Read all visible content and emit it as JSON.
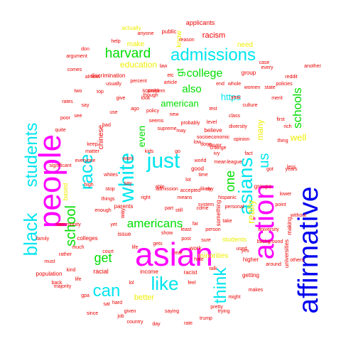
{
  "colors": {
    "blue": "#0000ee",
    "magenta": "#ff00ff",
    "cyan": "#00e5ee",
    "green": "#00dd00",
    "yellow": "#eeee00",
    "red": "#ee0000",
    "dark_red": "#aa0000",
    "background": "#ffffff"
  },
  "words": [
    {
      "text": "asian",
      "color": "magenta"
    },
    {
      "text": "people",
      "color": "magenta"
    },
    {
      "text": "action",
      "color": "magenta"
    },
    {
      "text": "affirmative",
      "color": "blue"
    },
    {
      "text": "white",
      "color": "cyan"
    },
    {
      "text": "admissions",
      "color": "cyan"
    },
    {
      "text": "black",
      "color": "cyan"
    },
    {
      "text": "students",
      "color": "cyan"
    },
    {
      "text": "asians",
      "color": "cyan"
    },
    {
      "text": "just",
      "color": "cyan"
    },
    {
      "text": "like",
      "color": "cyan"
    },
    {
      "text": "race",
      "color": "cyan"
    },
    {
      "text": "can",
      "color": "cyan"
    },
    {
      "text": "think",
      "color": "cyan"
    },
    {
      "text": "us",
      "color": "cyan"
    },
    {
      "text": "harvard",
      "color": "green"
    },
    {
      "text": "school",
      "color": "green"
    },
    {
      "text": "get",
      "color": "green"
    },
    {
      "text": "americans",
      "color": "green"
    },
    {
      "text": "college",
      "color": "green"
    },
    {
      "text": "schools",
      "color": "green"
    },
    {
      "text": "one",
      "color": "green"
    },
    {
      "text": "also",
      "color": "green"
    },
    {
      "text": "american",
      "color": "green"
    },
    {
      "text": "even",
      "color": "green"
    },
    {
      "text": "education",
      "color": "yellow"
    },
    {
      "text": "racism",
      "color": "red"
    },
    {
      "text": "applicants",
      "color": "red"
    },
    {
      "text": "chinese",
      "color": "red"
    },
    {
      "text": "many",
      "color": "yellow"
    },
    {
      "text": "know",
      "color": "yellow"
    },
    {
      "text": "make",
      "color": "yellow"
    },
    {
      "text": "need",
      "color": "yellow"
    },
    {
      "text": "better",
      "color": "yellow"
    },
    {
      "text": "well",
      "color": "yellow"
    },
    {
      "text": "really",
      "color": "yellow"
    },
    {
      "text": "https",
      "color": "cyan"
    },
    {
      "text": "minorities",
      "color": "yellow"
    },
    {
      "text": "discrimination",
      "color": "red"
    },
    {
      "text": "actually",
      "color": "yellow"
    },
    {
      "text": "public",
      "color": "red"
    },
    {
      "text": "scores",
      "color": "red"
    },
    {
      "text": "problem",
      "color": "red"
    },
    {
      "text": "believe",
      "color": "red"
    },
    {
      "text": "based",
      "color": "yellow"
    },
    {
      "text": "income",
      "color": "red"
    },
    {
      "text": "issue",
      "color": "red"
    },
    {
      "text": "parents",
      "color": "red"
    },
    {
      "text": "colleges",
      "color": "red"
    },
    {
      "text": "population",
      "color": "red"
    },
    {
      "text": "racist",
      "color": "red"
    },
    {
      "text": "higher",
      "color": "red"
    },
    {
      "text": "getting",
      "color": "red"
    },
    {
      "text": "group",
      "color": "red"
    },
    {
      "text": "groups",
      "color": "red"
    },
    {
      "text": "students",
      "color": "yellow"
    },
    {
      "text": "universities",
      "color": "red"
    },
    {
      "text": "making",
      "color": "red"
    },
    {
      "text": "work",
      "color": "red"
    },
    {
      "text": "gt",
      "color": "green"
    },
    {
      "text": "way",
      "color": "red"
    },
    {
      "text": "something",
      "color": "red"
    },
    {
      "text": "racial",
      "color": "red"
    },
    {
      "text": "never",
      "color": "red"
    },
    {
      "text": "good",
      "color": "red"
    },
    {
      "text": "level",
      "color": "red"
    },
    {
      "text": "help",
      "color": "red"
    },
    {
      "text": "argument",
      "color": "red"
    },
    {
      "text": "anyone",
      "color": "red"
    },
    {
      "text": "reason",
      "color": "red"
    },
    {
      "text": "others",
      "color": "red"
    },
    {
      "text": "majority",
      "color": "red"
    },
    {
      "text": "family",
      "color": "red"
    },
    {
      "text": "hard",
      "color": "red"
    },
    {
      "text": "things",
      "color": "red"
    },
    {
      "text": "opinion",
      "color": "red"
    },
    {
      "text": "change",
      "color": "red"
    },
    {
      "text": "around",
      "color": "red"
    },
    {
      "text": "given",
      "color": "red"
    },
    {
      "text": "court",
      "color": "red"
    },
    {
      "text": "point",
      "color": "red"
    },
    {
      "text": "saying",
      "color": "red"
    },
    {
      "text": "less",
      "color": "red"
    },
    {
      "text": "case",
      "color": "red"
    },
    {
      "text": "top",
      "color": "red"
    },
    {
      "text": "every",
      "color": "red"
    },
    {
      "text": "without",
      "color": "red"
    },
    {
      "text": "pretty",
      "color": "red"
    },
    {
      "text": "though",
      "color": "red"
    },
    {
      "text": "high",
      "color": "red"
    },
    {
      "text": "thing",
      "color": "red"
    },
    {
      "text": "admission",
      "color": "red"
    },
    {
      "text": "system",
      "color": "red"
    },
    {
      "text": "still",
      "color": "red"
    },
    {
      "text": "since",
      "color": "red"
    },
    {
      "text": "year",
      "color": "red"
    },
    {
      "text": "years",
      "color": "red"
    },
    {
      "text": "culture",
      "color": "red"
    },
    {
      "text": "percent",
      "color": "red"
    },
    {
      "text": "everyone",
      "color": "red"
    },
    {
      "text": "personal",
      "color": "red"
    },
    {
      "text": "another",
      "color": "red"
    },
    {
      "text": "look",
      "color": "red"
    },
    {
      "text": "enough",
      "color": "red"
    },
    {
      "text": "rather",
      "color": "red"
    },
    {
      "text": "world",
      "color": "red"
    },
    {
      "text": "policy",
      "color": "red"
    },
    {
      "text": "poor",
      "color": "red"
    },
    {
      "text": "kids",
      "color": "red"
    },
    {
      "text": "person",
      "color": "red"
    },
    {
      "text": "got",
      "color": "red"
    },
    {
      "text": "probably",
      "color": "red"
    },
    {
      "text": "take",
      "color": "red"
    },
    {
      "text": "go",
      "color": "red"
    },
    {
      "text": "see",
      "color": "red"
    },
    {
      "text": "may",
      "color": "red"
    },
    {
      "text": "say",
      "color": "red"
    },
    {
      "text": "new",
      "color": "red"
    },
    {
      "text": "lot",
      "color": "red"
    },
    {
      "text": "show",
      "color": "red"
    },
    {
      "text": "say",
      "color": "red"
    },
    {
      "text": "want",
      "color": "red"
    },
    {
      "text": "time",
      "color": "red"
    },
    {
      "text": "right",
      "color": "red"
    },
    {
      "text": "part",
      "color": "red"
    },
    {
      "text": "real",
      "color": "red"
    },
    {
      "text": "life",
      "color": "red"
    },
    {
      "text": "bad",
      "color": "red"
    },
    {
      "text": "post",
      "color": "red"
    },
    {
      "text": "done",
      "color": "red"
    },
    {
      "text": "fact",
      "color": "red"
    },
    {
      "text": "gets",
      "color": "red"
    },
    {
      "text": "don",
      "color": "red"
    },
    {
      "text": "say",
      "color": "red"
    },
    {
      "text": "two",
      "color": "red"
    },
    {
      "text": "use",
      "color": "red"
    },
    {
      "text": "test",
      "color": "red"
    },
    {
      "text": "class",
      "color": "red"
    },
    {
      "text": "mean",
      "color": "red"
    },
    {
      "text": "means",
      "color": "red"
    },
    {
      "text": "able",
      "color": "red"
    },
    {
      "text": "seems",
      "color": "red"
    },
    {
      "text": "article",
      "color": "red"
    },
    {
      "text": "first",
      "color": "red"
    },
    {
      "text": "rich",
      "color": "red"
    },
    {
      "text": "socioeconomic",
      "color": "red"
    },
    {
      "text": "diversity",
      "color": "red"
    },
    {
      "text": "supreme",
      "color": "red"
    },
    {
      "text": "accepted",
      "color": "red"
    },
    {
      "text": "ivy",
      "color": "red"
    },
    {
      "text": "league",
      "color": "red"
    },
    {
      "text": "far",
      "color": "red"
    },
    {
      "text": "lower",
      "color": "red"
    },
    {
      "text": "yet",
      "color": "red"
    },
    {
      "text": "sure",
      "color": "red"
    },
    {
      "text": "least",
      "color": "red"
    },
    {
      "text": "hispanic",
      "color": "red"
    },
    {
      "text": "university",
      "color": "red"
    },
    {
      "text": "background",
      "color": "red"
    },
    {
      "text": "keep",
      "color": "red"
    },
    {
      "text": "matter",
      "color": "red"
    },
    {
      "text": "stop",
      "color": "red"
    },
    {
      "text": "community",
      "color": "red"
    },
    {
      "text": "non",
      "color": "red"
    },
    {
      "text": "ago",
      "color": "red"
    },
    {
      "text": "give",
      "color": "red"
    },
    {
      "text": "low",
      "color": "red"
    },
    {
      "text": "whites",
      "color": "red"
    },
    {
      "text": "likely",
      "color": "red"
    },
    {
      "text": "used",
      "color": "red"
    },
    {
      "text": "hate",
      "color": "red"
    },
    {
      "text": "talk",
      "color": "red"
    },
    {
      "text": "feel",
      "color": "red"
    },
    {
      "text": "lol",
      "color": "red"
    },
    {
      "text": "kind",
      "color": "red"
    },
    {
      "text": "life",
      "color": "red"
    },
    {
      "text": "come",
      "color": "red"
    },
    {
      "text": "yes",
      "color": "red"
    },
    {
      "text": "makes",
      "color": "red"
    },
    {
      "text": "might",
      "color": "red"
    },
    {
      "text": "trying",
      "color": "red"
    },
    {
      "text": "trump",
      "color": "red"
    },
    {
      "text": "rate",
      "color": "red"
    },
    {
      "text": "day",
      "color": "red"
    },
    {
      "text": "country",
      "color": "red"
    },
    {
      "text": "job",
      "color": "red"
    },
    {
      "text": "sat",
      "color": "red"
    },
    {
      "text": "gpa",
      "color": "red"
    },
    {
      "text": "back",
      "color": "red"
    },
    {
      "text": "must",
      "color": "red"
    },
    {
      "text": "much",
      "color": "red"
    },
    {
      "text": "merit",
      "color": "red"
    },
    {
      "text": "policies",
      "color": "red"
    },
    {
      "text": "reddit",
      "color": "red"
    },
    {
      "text": "state",
      "color": "red"
    },
    {
      "text": "women",
      "color": "red"
    },
    {
      "text": "whole",
      "color": "red"
    },
    {
      "text": "end",
      "color": "red"
    },
    {
      "text": "law",
      "color": "red"
    },
    {
      "text": "etc",
      "color": "red"
    },
    {
      "text": "usually",
      "color": "red"
    },
    {
      "text": "almost",
      "color": "red"
    },
    {
      "text": "comes",
      "color": "red"
    },
    {
      "text": "rates",
      "color": "red"
    },
    {
      "text": "quite",
      "color": "red"
    },
    {
      "text": "significant",
      "color": "red"
    }
  ]
}
